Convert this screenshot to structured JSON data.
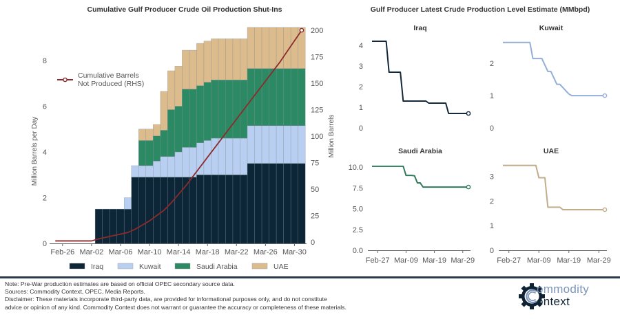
{
  "colors": {
    "iraq": "#0c2638",
    "kuwait": "#b8cff2",
    "saudi": "#2b8a64",
    "uae": "#dcbc8c",
    "line": "#8b2b2b",
    "kuwait_line": "#94afd6",
    "uae_line": "#c2ad8a",
    "saudi_line": "#2e7a59",
    "iraq_line": "#13283a",
    "axis": "#555555",
    "logo_light": "#7d95b8",
    "logo_dark": "#0e2233"
  },
  "chart_data": [
    {
      "type": "bar",
      "stacked": true,
      "title": "Cumulative Gulf Producer Crude Oil Production Shut-Ins",
      "ylabel": "Million Barrels per Day",
      "y2label": "Million Barrels",
      "ylim": [
        0,
        9.6
      ],
      "y2lim": [
        0,
        206
      ],
      "yticks": [
        0,
        2,
        4,
        6,
        8
      ],
      "y2ticks": [
        0,
        25,
        50,
        75,
        100,
        125,
        150,
        175,
        200
      ],
      "xticks": [
        "Feb-26",
        "Mar-02",
        "Mar-06",
        "Mar-10",
        "Mar-14",
        "Mar-18",
        "Mar-22",
        "Mar-26",
        "Mar-30"
      ],
      "x": [
        "Feb-25",
        "Feb-26",
        "Feb-27",
        "Feb-28",
        "Mar-01",
        "Mar-02",
        "Mar-03",
        "Mar-04",
        "Mar-05",
        "Mar-06",
        "Mar-07",
        "Mar-08",
        "Mar-09",
        "Mar-10",
        "Mar-11",
        "Mar-12",
        "Mar-13",
        "Mar-14",
        "Mar-15",
        "Mar-16",
        "Mar-17",
        "Mar-18",
        "Mar-19",
        "Mar-20",
        "Mar-21",
        "Mar-22",
        "Mar-23",
        "Mar-24",
        "Mar-25",
        "Mar-26",
        "Mar-27",
        "Mar-28",
        "Mar-29",
        "Mar-30",
        "Mar-31"
      ],
      "grid": false,
      "legend_position": "bottom",
      "series": [
        {
          "name": "Iraq",
          "key": "iraq",
          "values": [
            0,
            0,
            0,
            0,
            0,
            0,
            1.5,
            1.5,
            1.5,
            1.5,
            1.5,
            2.9,
            2.9,
            2.9,
            2.9,
            2.9,
            2.9,
            2.9,
            2.9,
            2.9,
            3.0,
            3.0,
            3.0,
            3.0,
            3.0,
            3.0,
            3.0,
            3.5,
            3.5,
            3.5,
            3.5,
            3.5,
            3.5,
            3.5,
            3.5
          ]
        },
        {
          "name": "Kuwait",
          "key": "kuwait",
          "values": [
            0,
            0,
            0,
            0,
            0,
            0,
            0,
            0,
            0,
            0,
            0.5,
            0.5,
            0.5,
            0.5,
            0.7,
            0.9,
            0.9,
            1.1,
            1.3,
            1.3,
            1.4,
            1.5,
            1.6,
            1.6,
            1.6,
            1.6,
            1.6,
            1.65,
            1.65,
            1.65,
            1.65,
            1.65,
            1.65,
            1.65,
            1.65
          ]
        },
        {
          "name": "Saudi Arabia",
          "key": "saudi",
          "values": [
            0,
            0,
            0,
            0,
            0,
            0,
            0,
            0,
            0,
            0,
            0,
            0,
            1.1,
            1.1,
            1.1,
            1.15,
            2.05,
            2.0,
            2.55,
            2.55,
            2.5,
            2.55,
            2.55,
            2.55,
            2.55,
            2.55,
            2.55,
            2.5,
            2.5,
            2.5,
            2.5,
            2.5,
            2.5,
            2.5,
            2.5
          ]
        },
        {
          "name": "UAE",
          "key": "uae",
          "values": [
            0,
            0,
            0,
            0,
            0,
            0,
            0,
            0,
            0,
            0,
            0,
            0,
            0.5,
            0.5,
            0.5,
            1.7,
            1.7,
            1.75,
            1.7,
            1.7,
            1.85,
            1.8,
            1.8,
            1.8,
            1.8,
            1.8,
            1.8,
            1.8,
            1.8,
            1.8,
            1.8,
            1.8,
            1.8,
            1.8,
            1.8
          ]
        }
      ],
      "line_series": {
        "name": "Cumulative Barrels Not Produced (RHS)",
        "axis": "right",
        "values": [
          1,
          1,
          1,
          1,
          1,
          1,
          3,
          4.5,
          6,
          7.5,
          9,
          12,
          16,
          20,
          25,
          30,
          37,
          45,
          53,
          62,
          71,
          80,
          89,
          98,
          107,
          116,
          125,
          134,
          143,
          152,
          161,
          170,
          180,
          190,
          200
        ]
      },
      "legend_label_line1": "Cumulative Barrels",
      "legend_label_line2": "Not Produced (RHS)"
    },
    {
      "type": "line",
      "title": "Gulf Producer Latest Crude Production Level Estimate (MMbpd)",
      "xticks": [
        "Feb-27",
        "Mar-09",
        "Mar-19",
        "Mar-29"
      ],
      "x": [
        "Feb-25",
        "Feb-26",
        "Feb-27",
        "Feb-28",
        "Mar-01",
        "Mar-02",
        "Mar-03",
        "Mar-04",
        "Mar-05",
        "Mar-06",
        "Mar-07",
        "Mar-08",
        "Mar-09",
        "Mar-10",
        "Mar-11",
        "Mar-12",
        "Mar-13",
        "Mar-14",
        "Mar-15",
        "Mar-16",
        "Mar-17",
        "Mar-18",
        "Mar-19",
        "Mar-20",
        "Mar-21",
        "Mar-22",
        "Mar-23",
        "Mar-24",
        "Mar-25",
        "Mar-26",
        "Mar-27",
        "Mar-28",
        "Mar-29",
        "Mar-30",
        "Mar-31"
      ],
      "panels": [
        {
          "name": "Iraq",
          "key": "iraq_line",
          "ylim": [
            0,
            4.3
          ],
          "yticks": [
            "0",
            "1",
            "2",
            "3",
            "4"
          ],
          "ytick_values": [
            0,
            1,
            2,
            3,
            4
          ],
          "show_xaxis": false,
          "values": [
            4.2,
            4.2,
            4.2,
            4.2,
            4.2,
            4.2,
            2.7,
            2.7,
            2.7,
            2.7,
            2.7,
            1.3,
            1.3,
            1.3,
            1.3,
            1.3,
            1.3,
            1.3,
            1.3,
            1.3,
            1.2,
            1.2,
            1.2,
            1.2,
            1.2,
            1.2,
            1.2,
            0.7,
            0.7,
            0.7,
            0.7,
            0.7,
            0.7,
            0.7,
            0.7
          ]
        },
        {
          "name": "Kuwait",
          "key": "kuwait_line",
          "ylim": [
            0,
            2.75
          ],
          "yticks": [
            "0",
            "1",
            "2"
          ],
          "ytick_values": [
            0,
            1,
            2
          ],
          "show_xaxis": false,
          "values": [
            2.65,
            2.65,
            2.65,
            2.65,
            2.65,
            2.65,
            2.65,
            2.65,
            2.65,
            2.65,
            2.15,
            2.15,
            2.15,
            2.15,
            1.95,
            1.75,
            1.75,
            1.55,
            1.35,
            1.35,
            1.25,
            1.15,
            1.05,
            1.0,
            1.0,
            1.0,
            1.0,
            1.0,
            1.0,
            1.0,
            1.0,
            1.0,
            1.0,
            1.0,
            1.0
          ]
        },
        {
          "name": "Saudi Arabia",
          "key": "saudi_line",
          "ylim": [
            0,
            10.5
          ],
          "yticks": [
            "0.0",
            "2.5",
            "5.0",
            "7.5",
            "10.0"
          ],
          "ytick_values": [
            0,
            2.5,
            5,
            7.5,
            10
          ],
          "show_xaxis": true,
          "values": [
            10.1,
            10.1,
            10.1,
            10.1,
            10.1,
            10.1,
            10.1,
            10.1,
            10.1,
            10.1,
            10.1,
            10.1,
            9.0,
            9.0,
            9.0,
            8.95,
            8.1,
            8.1,
            7.6,
            7.6,
            7.6,
            7.6,
            7.6,
            7.6,
            7.6,
            7.6,
            7.6,
            7.6,
            7.6,
            7.6,
            7.6,
            7.6,
            7.6,
            7.6,
            7.6
          ]
        },
        {
          "name": "UAE",
          "key": "uae_line",
          "ylim": [
            0,
            3.55
          ],
          "yticks": [
            "0",
            "1",
            "2",
            "3"
          ],
          "ytick_values": [
            0,
            1,
            2,
            3
          ],
          "show_xaxis": true,
          "values": [
            3.45,
            3.45,
            3.45,
            3.45,
            3.45,
            3.45,
            3.45,
            3.45,
            3.45,
            3.45,
            3.45,
            3.45,
            2.95,
            2.95,
            2.95,
            1.75,
            1.75,
            1.75,
            1.75,
            1.75,
            1.65,
            1.65,
            1.65,
            1.65,
            1.65,
            1.65,
            1.65,
            1.65,
            1.65,
            1.65,
            1.65,
            1.65,
            1.65,
            1.65,
            1.65
          ]
        }
      ]
    }
  ],
  "footer": {
    "note": "Note: Pre-War production estimates are based on official OPEC secondary source data.",
    "sources": "Sources: Commodity Context, OPEC, Media Reports.",
    "disclaimer1": "Disclaimer: These materials incorporate third-party data, are provided for informational purposes only, and do not constitute",
    "disclaimer2": "advice or opinion of any kind. Commodity Context does not warrant or guarantee the accuracy or completeness of these materials."
  },
  "logo": {
    "line1": "ommodity",
    "line2": "ontext",
    "icon": "gear-c-icon"
  }
}
